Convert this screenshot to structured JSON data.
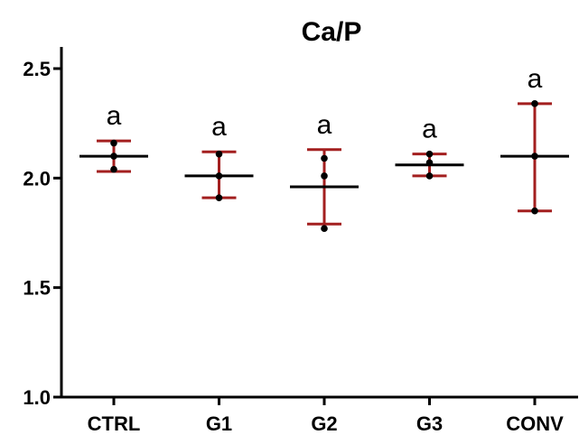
{
  "chart_data": {
    "type": "scatter",
    "title": "Ca/P",
    "xlabel": "",
    "ylabel": "",
    "ylim": [
      1.0,
      2.6
    ],
    "yticks": [
      "1.0",
      "1.5",
      "2.0",
      "2.5"
    ],
    "grid": false,
    "categories": [
      "CTRL",
      "G1",
      "G2",
      "G3",
      "CONV"
    ],
    "groups": [
      {
        "category": "CTRL",
        "mean": 2.1,
        "error_low": 2.03,
        "error_high": 2.17,
        "points": [
          2.1,
          2.16,
          2.04
        ],
        "label": "a"
      },
      {
        "category": "G1",
        "mean": 2.01,
        "error_low": 1.91,
        "error_high": 2.12,
        "points": [
          2.01,
          2.11,
          1.91
        ],
        "label": "a"
      },
      {
        "category": "G2",
        "mean": 1.96,
        "error_low": 1.79,
        "error_high": 2.13,
        "points": [
          2.09,
          2.01,
          1.77
        ],
        "label": "a"
      },
      {
        "category": "G3",
        "mean": 2.06,
        "error_low": 2.01,
        "error_high": 2.11,
        "points": [
          2.11,
          2.07,
          2.01
        ],
        "label": "a"
      },
      {
        "category": "CONV",
        "mean": 2.1,
        "error_low": 1.85,
        "error_high": 2.34,
        "points": [
          2.34,
          2.1,
          1.85
        ],
        "label": "a"
      }
    ],
    "colors": {
      "error_bar": "#a31f1f",
      "mean_line": "#000000",
      "points": "#000000",
      "axes": "#000000"
    }
  }
}
